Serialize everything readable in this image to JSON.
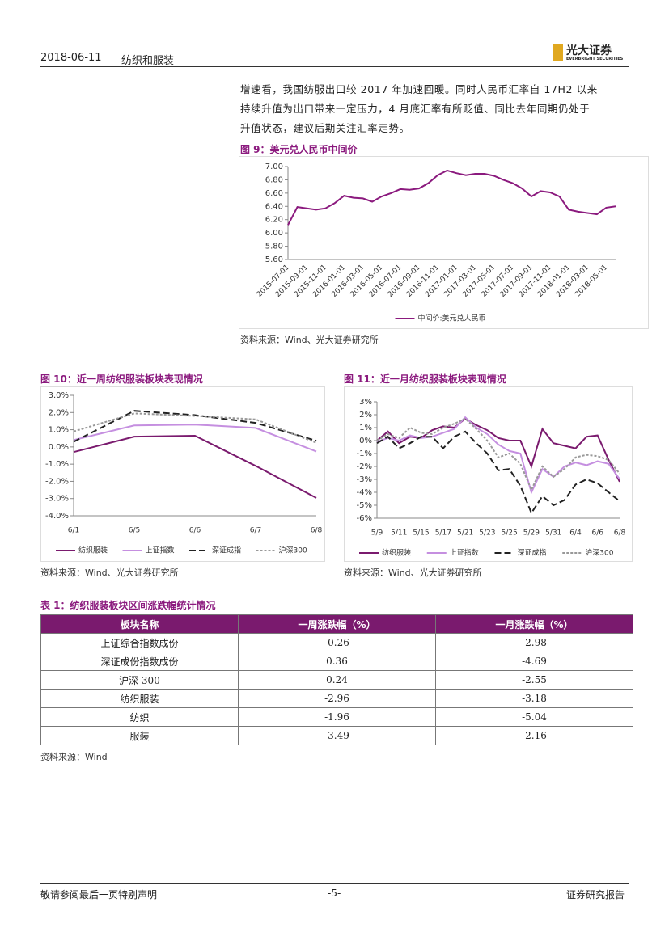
{
  "header": {
    "date": "2018-06-11",
    "section": "纺织和服装",
    "logo": "光大证券",
    "logo_en": "EVERBRIGHT SECURITIES"
  },
  "body": {
    "lines": [
      "增速看，我国纺服出口较 2017 年加速回暖。同时人民币汇率自 17H2 以来",
      "持续升值为出口带来一定压力，4 月底汇率有所贬值、同比去年同期仍处于",
      "升值状态，建议后期关注汇率走势。"
    ]
  },
  "chart_data": [
    {
      "type": "line",
      "title": "图 9：美元兑人民币中间价",
      "source": "资料来源：Wind、光大证券研究所",
      "categories": [
        "2015-07-01",
        null,
        "2015-09-01",
        null,
        "2015-11-01",
        null,
        "2016-01-01",
        null,
        "2016-03-01",
        null,
        "2016-05-01",
        null,
        "2016-07-01",
        null,
        "2016-09-01",
        null,
        "2016-11-01",
        null,
        "2017-01-01",
        null,
        "2017-03-01",
        null,
        "2017-05-01",
        null,
        "2017-07-01",
        null,
        "2017-09-01",
        null,
        "2017-11-01",
        null,
        "2018-01-01",
        null,
        "2018-03-01",
        null,
        "2018-05-01",
        null
      ],
      "series": [
        {
          "name": "中间价:美元兑人民币",
          "color": "#8b1a7e",
          "linestyle": "solid",
          "values": [
            6.12,
            6.39,
            6.37,
            6.35,
            6.37,
            6.45,
            6.56,
            6.53,
            6.52,
            6.47,
            6.55,
            6.6,
            6.66,
            6.65,
            6.67,
            6.75,
            6.87,
            6.94,
            6.9,
            6.87,
            6.89,
            6.89,
            6.86,
            6.8,
            6.75,
            6.67,
            6.55,
            6.63,
            6.61,
            6.55,
            6.35,
            6.32,
            6.3,
            6.28,
            6.38,
            6.4
          ]
        }
      ],
      "ylim": [
        5.6,
        7.0
      ],
      "yticks": [
        {
          "value": 5.6,
          "label": "5.60"
        },
        {
          "value": 5.8,
          "label": "5.80"
        },
        {
          "value": 6.0,
          "label": "6.00"
        },
        {
          "value": 6.2,
          "label": "6.20"
        },
        {
          "value": 6.4,
          "label": "6.40"
        },
        {
          "value": 6.6,
          "label": "6.60"
        },
        {
          "value": 6.8,
          "label": "6.80"
        },
        {
          "value": 7.0,
          "label": "7.00"
        }
      ]
    },
    {
      "type": "line",
      "title": "图 10：近一周纺织服装板块表现情况",
      "source": "资料来源：Wind、光大证券研究所",
      "categories": [
        "6/1",
        "6/5",
        "6/6",
        "6/7",
        "6/8"
      ],
      "series": [
        {
          "name": "纺织服装",
          "color": "#7a1a6e",
          "linestyle": "solid",
          "values": [
            -0.3,
            0.6,
            0.65,
            -1.1,
            -2.96
          ]
        },
        {
          "name": "上证指数",
          "color": "#c58fe0",
          "linestyle": "solid",
          "values": [
            0.4,
            1.25,
            1.3,
            1.1,
            -0.26
          ]
        },
        {
          "name": "深证成指",
          "color": "#222222",
          "linestyle": "dashed",
          "values": [
            0.3,
            2.1,
            1.85,
            1.4,
            0.36
          ]
        },
        {
          "name": "沪深300",
          "color": "#999999",
          "linestyle": "dotted",
          "values": [
            0.9,
            1.95,
            1.8,
            1.6,
            0.24
          ]
        }
      ],
      "ylim": [
        -4,
        3
      ],
      "yticks": [
        {
          "value": -4,
          "label": "-4.0%"
        },
        {
          "value": -3,
          "label": "-3.0%"
        },
        {
          "value": -2,
          "label": "-2.0%"
        },
        {
          "value": -1,
          "label": "-1.0%"
        },
        {
          "value": 0,
          "label": "0.0%"
        },
        {
          "value": 1,
          "label": "1.0%"
        },
        {
          "value": 2,
          "label": "2.0%"
        },
        {
          "value": 3,
          "label": "3.0%"
        }
      ]
    },
    {
      "type": "line",
      "title": "图 11：近一月纺织服装板块表现情况",
      "source": "资料来源：Wind、光大证券研究所",
      "categories": [
        "5/9",
        null,
        "5/11",
        null,
        "5/15",
        null,
        "5/17",
        null,
        "5/21",
        null,
        "5/23",
        null,
        "5/25",
        null,
        "5/29",
        null,
        "5/31",
        null,
        "6/4",
        null,
        "6/6",
        null,
        "6/8"
      ],
      "series": [
        {
          "name": "纺织服装",
          "color": "#7a1a6e",
          "linestyle": "solid",
          "values": [
            0,
            0.7,
            -0.2,
            0.3,
            0.2,
            0.8,
            1.1,
            1.0,
            1.7,
            1.2,
            0.8,
            0.2,
            0.0,
            0.0,
            -2.0,
            0.9,
            -0.2,
            -0.4,
            -0.6,
            0.3,
            0.4,
            -1.5,
            -3.18
          ]
        },
        {
          "name": "上证指数",
          "color": "#c58fe0",
          "linestyle": "solid",
          "values": [
            -0.1,
            0.2,
            0.0,
            0.4,
            0.2,
            0.3,
            0.6,
            0.9,
            1.8,
            1.0,
            0.5,
            -0.3,
            -0.8,
            -1.0,
            -4.0,
            -2.2,
            -2.8,
            -2.0,
            -1.7,
            -1.9,
            -1.6,
            -1.8,
            -2.98
          ]
        },
        {
          "name": "深证成指",
          "color": "#222222",
          "linestyle": "dashed",
          "values": [
            -0.2,
            0.3,
            -0.6,
            -0.2,
            0.3,
            0.3,
            -0.6,
            0.3,
            0.7,
            -0.2,
            -1.0,
            -2.3,
            -2.2,
            -3.5,
            -5.6,
            -4.3,
            -5.0,
            -4.6,
            -3.4,
            -3.0,
            -3.3,
            -4.0,
            -4.69
          ]
        },
        {
          "name": "沪深300",
          "color": "#999999",
          "linestyle": "dotted",
          "values": [
            0.0,
            0.5,
            0.2,
            1.0,
            0.6,
            0.5,
            1.0,
            1.3,
            1.7,
            0.9,
            0.0,
            -1.3,
            -1.0,
            -1.8,
            -3.8,
            -2.0,
            -2.8,
            -2.2,
            -1.3,
            -1.1,
            -1.2,
            -1.5,
            -2.55
          ]
        }
      ],
      "ylim": [
        -6,
        3
      ],
      "yticks": [
        {
          "value": -6,
          "label": "-6%"
        },
        {
          "value": -5,
          "label": "-5%"
        },
        {
          "value": -4,
          "label": "-4%"
        },
        {
          "value": -3,
          "label": "-3%"
        },
        {
          "value": -2,
          "label": "-2%"
        },
        {
          "value": -1,
          "label": "-1%"
        },
        {
          "value": 0,
          "label": "0%"
        },
        {
          "value": 1,
          "label": "1%"
        },
        {
          "value": 2,
          "label": "2%"
        },
        {
          "value": 3,
          "label": "3%"
        }
      ]
    }
  ],
  "table": {
    "title": "表 1：纺织服装板块区间涨跌幅统计情况",
    "source": "资料来源：Wind",
    "header": [
      "板块名称",
      "一周涨跌幅（%）",
      "一月涨跌幅（%）"
    ],
    "rows": [
      [
        "上证综合指数成份",
        -0.26,
        -2.98
      ],
      [
        "深证成份指数成份",
        0.36,
        -4.69
      ],
      [
        "沪深 300",
        0.24,
        -2.55
      ],
      [
        "纺织服装",
        -2.96,
        -3.18
      ],
      [
        "纺织",
        -1.96,
        -5.04
      ],
      [
        "服装",
        -3.49,
        -2.16
      ]
    ]
  },
  "footer": {
    "left": "敬请参阅最后一页特别声明",
    "center": "-5-",
    "right": "证券研究报告"
  }
}
